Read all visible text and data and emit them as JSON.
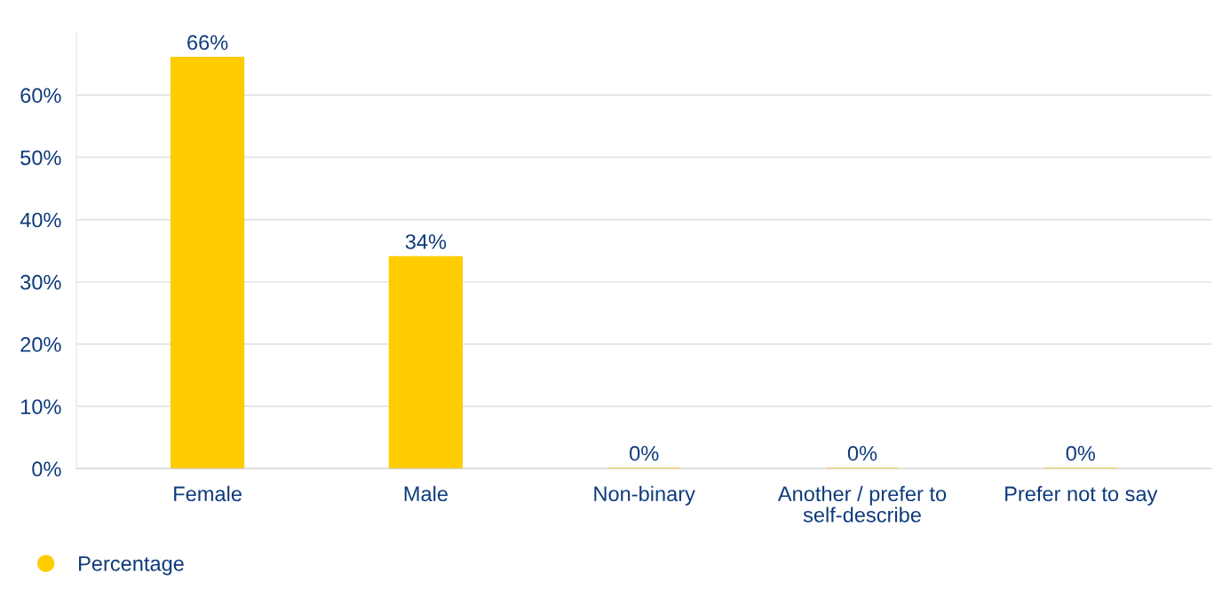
{
  "chart_data": {
    "type": "bar",
    "categories": [
      "Female",
      "Male",
      "Non-binary",
      "Another / prefer to self-describe",
      "Prefer not to say"
    ],
    "series": [
      {
        "name": "Percentage",
        "color": "#ffcc00",
        "values": [
          66,
          34,
          0,
          0,
          0
        ],
        "value_labels": [
          "66%",
          "34%",
          "0%",
          "0%",
          "0%"
        ]
      }
    ],
    "ylim": [
      0,
      70
    ],
    "yticks": [
      {
        "value": 0,
        "label": "0%"
      },
      {
        "value": 10,
        "label": "10%"
      },
      {
        "value": 20,
        "label": "20%"
      },
      {
        "value": 30,
        "label": "30%"
      },
      {
        "value": 40,
        "label": "40%"
      },
      {
        "value": 50,
        "label": "50%"
      },
      {
        "value": 60,
        "label": "60%"
      }
    ],
    "grid": "y",
    "legend": "bottom left"
  }
}
